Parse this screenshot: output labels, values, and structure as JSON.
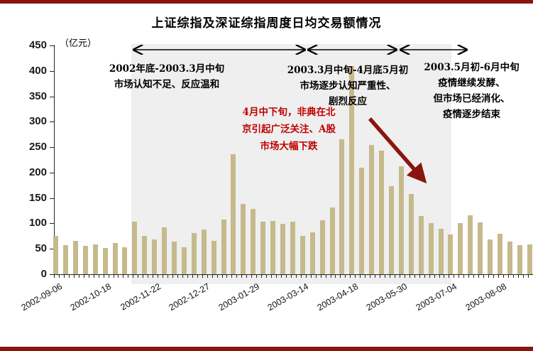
{
  "page": {
    "border_color": "#8a140e",
    "background": "#ffffff"
  },
  "chart_data": {
    "type": "bar",
    "title": "上证综指及深证综指周度日均交易额情况",
    "unit_label": "（亿元）",
    "xlabel": "",
    "ylabel": "",
    "ylim": [
      0,
      450
    ],
    "ytick_step": 50,
    "grid": false,
    "legend": "none",
    "bar_color": "#c6ba8c",
    "shaded_band_color": "#efefef",
    "x_tick_labels": [
      "2002-09-06",
      "2002-10-18",
      "2002-11-22",
      "2002-12-27",
      "2003-01-29",
      "2003-03-14",
      "2003-04-18",
      "2003-05-30",
      "2003-07-04",
      "2003-08-08"
    ],
    "label_every": 5,
    "values": [
      75,
      57,
      66,
      56,
      59,
      52,
      62,
      53,
      104,
      76,
      68,
      92,
      65,
      53,
      81,
      88,
      66,
      108,
      236,
      138,
      129,
      104,
      105,
      99,
      104,
      75,
      83,
      106,
      132,
      265,
      410,
      210,
      255,
      243,
      173,
      212,
      158,
      114,
      101,
      90,
      78,
      101,
      116,
      102,
      68,
      80,
      64,
      57,
      59
    ],
    "annotations": {
      "phase1": {
        "lines": [
          "2002年底-2003.3月中旬",
          "市场认知不足、反应温和"
        ]
      },
      "phase2": {
        "lines": [
          "2003.3月中旬-4月底5月初",
          "市场逐步认知严重性、",
          "剧烈反应"
        ]
      },
      "phase3": {
        "lines": [
          "2003.5月初-6月中旬",
          "疫情继续发酵、",
          "但市场已经消化、",
          "疫情逐步结束"
        ]
      },
      "sars_note": {
        "lines": [
          "4月中下旬，非典在北",
          "京引起广泛关注、A股",
          "市场大幅下跌"
        ],
        "color": "#c00000"
      },
      "arrow_color": "#8b1410"
    }
  }
}
